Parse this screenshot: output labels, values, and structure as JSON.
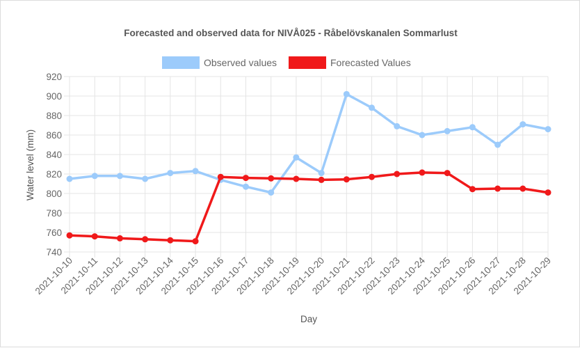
{
  "chart_data": {
    "type": "line",
    "title": "Forecasted and observed data for NIVÅ025 - Råbelövskanalen Sommarlust",
    "xlabel": "Day",
    "ylabel": "Water level (mm)",
    "ylim": [
      740,
      920
    ],
    "y_ticks": [
      740,
      760,
      780,
      800,
      820,
      840,
      860,
      880,
      900,
      920
    ],
    "grid": true,
    "legend_position": "top",
    "categories": [
      "2021-10-10",
      "2021-10-11",
      "2021-10-12",
      "2021-10-13",
      "2021-10-14",
      "2021-10-15",
      "2021-10-16",
      "2021-10-17",
      "2021-10-18",
      "2021-10-19",
      "2021-10-20",
      "2021-10-21",
      "2021-10-22",
      "2021-10-23",
      "2021-10-24",
      "2021-10-25",
      "2021-10-26",
      "2021-10-27",
      "2021-10-28",
      "2021-10-29"
    ],
    "series": [
      {
        "name": "Observed values",
        "color": "#9ccbfb",
        "values": [
          815,
          818,
          818,
          815,
          821,
          823,
          814,
          807,
          801,
          837,
          821,
          902,
          888,
          869,
          860,
          864,
          868,
          850,
          871,
          866
        ]
      },
      {
        "name": "Forecasted Values",
        "color": "#f0191a",
        "values": [
          757,
          756,
          754,
          753,
          752,
          751,
          817,
          816,
          815.5,
          815,
          814,
          814.5,
          817,
          820,
          821.5,
          821,
          804.5,
          805,
          805,
          801
        ]
      }
    ]
  }
}
